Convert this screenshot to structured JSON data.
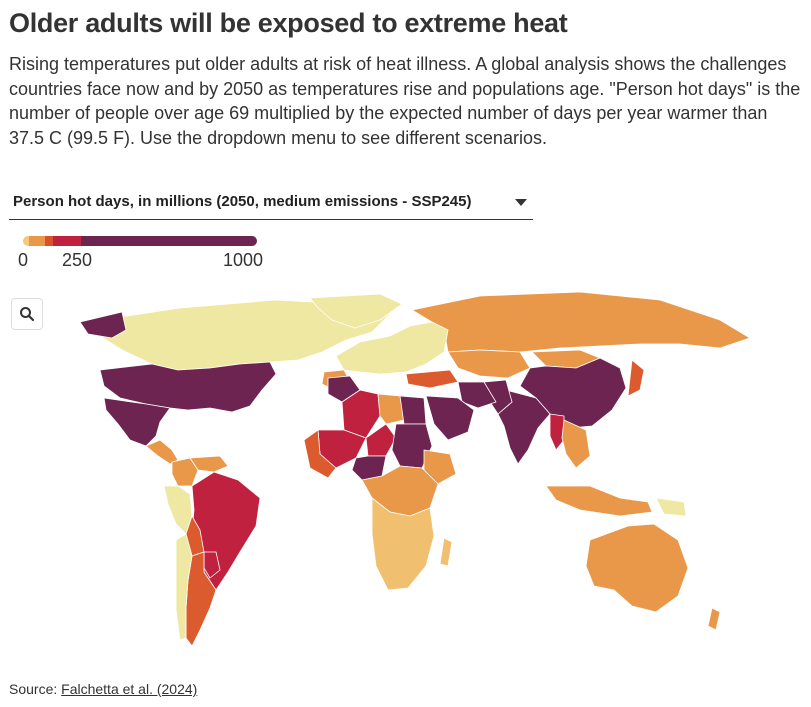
{
  "header": {
    "title": "Older adults will be exposed to extreme heat",
    "subtitle": "Rising temperatures put older adults at risk of heat illness. A global analysis shows the challenges countries face now and by 2050 as temperatures rise and populations age. \"Person hot days\" is the number of people over age 69 multiplied by the expected number of days per year warmer than 37.5 C (99.5 F). Use the dropdown menu to see different scenarios."
  },
  "controls": {
    "dropdown_selected": "Person hot days, in millions (2050, medium emissions - SSP245)"
  },
  "legend": {
    "ticks": [
      "0",
      "250",
      "1000"
    ],
    "colors": [
      "#f7c77a",
      "#e9984a",
      "#d9512b",
      "#c0213e",
      "#6e2450"
    ],
    "no_data_color": "#efe8a2"
  },
  "map": {
    "icons": {
      "search": "magnifier-icon"
    },
    "palette": {
      "light": "#efe8a2",
      "orange_light": "#f0c070",
      "orange": "#e9984a",
      "red_orange": "#db5a2e",
      "red": "#c0213e",
      "purple": "#6e2450"
    },
    "regions": [
      {
        "name": "Canada",
        "level": "light"
      },
      {
        "name": "Greenland",
        "level": "light"
      },
      {
        "name": "Alaska",
        "level": "purple"
      },
      {
        "name": "United States",
        "level": "purple"
      },
      {
        "name": "Mexico",
        "level": "purple"
      },
      {
        "name": "Central America",
        "level": "orange"
      },
      {
        "name": "Colombia",
        "level": "orange"
      },
      {
        "name": "Venezuela",
        "level": "orange"
      },
      {
        "name": "Brazil",
        "level": "red"
      },
      {
        "name": "Peru",
        "level": "light"
      },
      {
        "name": "Bolivia",
        "level": "red_orange"
      },
      {
        "name": "Paraguay",
        "level": "red"
      },
      {
        "name": "Argentina",
        "level": "red_orange"
      },
      {
        "name": "Chile",
        "level": "light"
      },
      {
        "name": "Russia",
        "level": "orange"
      },
      {
        "name": "Europe",
        "level": "light"
      },
      {
        "name": "Spain",
        "level": "orange"
      },
      {
        "name": "Turkey",
        "level": "red_orange"
      },
      {
        "name": "Kazakhstan",
        "level": "orange"
      },
      {
        "name": "Mongolia",
        "level": "orange"
      },
      {
        "name": "China",
        "level": "purple"
      },
      {
        "name": "India",
        "level": "purple"
      },
      {
        "name": "Pakistan",
        "level": "purple"
      },
      {
        "name": "Iran",
        "level": "purple"
      },
      {
        "name": "Saudi Arabia",
        "level": "purple"
      },
      {
        "name": "Myanmar",
        "level": "red"
      },
      {
        "name": "Southeast Asia",
        "level": "orange"
      },
      {
        "name": "Indonesia",
        "level": "orange"
      },
      {
        "name": "Morocco",
        "level": "purple"
      },
      {
        "name": "Algeria",
        "level": "red"
      },
      {
        "name": "Libya",
        "level": "orange"
      },
      {
        "name": "Egypt",
        "level": "purple"
      },
      {
        "name": "Mali",
        "level": "red"
      },
      {
        "name": "Niger",
        "level": "red"
      },
      {
        "name": "Nigeria",
        "level": "purple"
      },
      {
        "name": "Sudan",
        "level": "purple"
      },
      {
        "name": "Ethiopia",
        "level": "orange"
      },
      {
        "name": "West Africa coast",
        "level": "red_orange"
      },
      {
        "name": "Central Africa",
        "level": "orange"
      },
      {
        "name": "Southern Africa",
        "level": "orange_light"
      },
      {
        "name": "Madagascar",
        "level": "orange_light"
      },
      {
        "name": "Australia",
        "level": "orange"
      },
      {
        "name": "Papua New Guinea",
        "level": "light"
      },
      {
        "name": "New Zealand",
        "level": "orange"
      },
      {
        "name": "Japan",
        "level": "red_orange"
      }
    ]
  },
  "footer": {
    "source_prefix": "Source: ",
    "source_link": "Falchetta et al. (2024)"
  }
}
